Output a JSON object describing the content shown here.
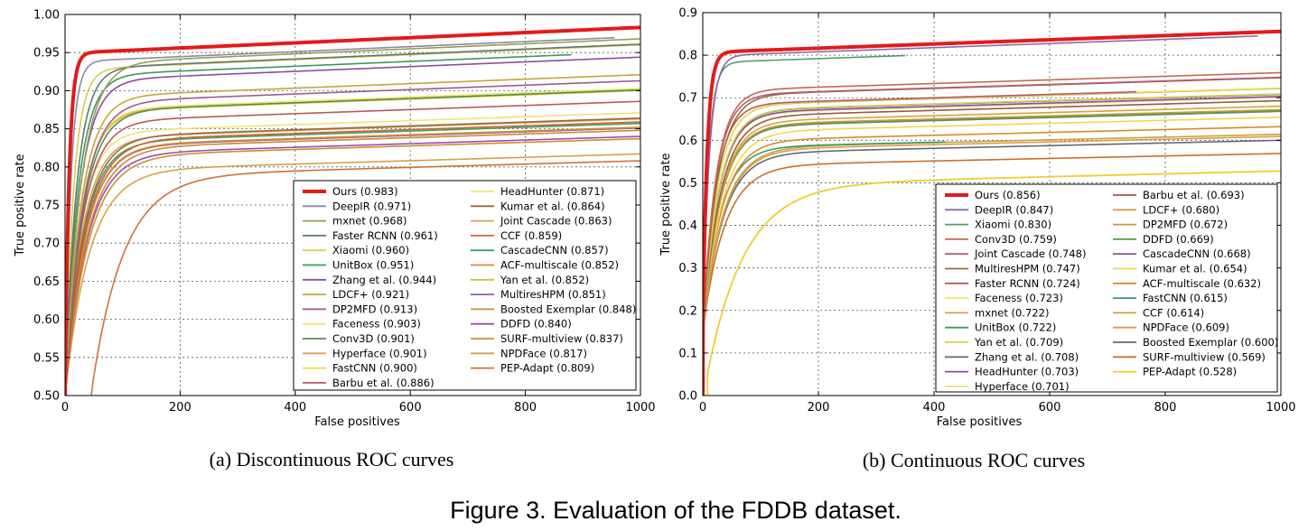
{
  "figure": {
    "caption": "Figure 3. Evaluation of the FDDB dataset."
  },
  "chart_data": [
    {
      "type": "line",
      "subtitle": "(a) Discontinuous ROC curves",
      "xlabel": "False positives",
      "ylabel": "True positive rate",
      "xlim": [
        0,
        1000
      ],
      "ylim": [
        0.5,
        1.0
      ],
      "xticks": [
        0,
        200,
        400,
        600,
        800,
        1000
      ],
      "yticks": [
        0.5,
        0.55,
        0.6,
        0.65,
        0.7,
        0.75,
        0.8,
        0.85,
        0.9,
        0.95,
        1.0
      ],
      "ytick_labels": [
        "0.50",
        "0.55",
        "0.60",
        "0.65",
        "0.70",
        "0.75",
        "0.80",
        "0.85",
        "0.90",
        "0.95",
        "1.00"
      ],
      "grid": true,
      "legend_position": "lower-right",
      "series": [
        {
          "name": "Ours (0.983)",
          "color": "#e41a1c",
          "width": 4,
          "final": 0.983,
          "x_end": 1000,
          "steep": 28,
          "start_y": 0.5
        },
        {
          "name": "DeepIR (0.971)",
          "color": "#8a8aa5",
          "width": 1.6,
          "final": 0.971,
          "x_end": 955,
          "steep": 40,
          "start_y": 0.5
        },
        {
          "name": "mxnet (0.968)",
          "color": "#9c9c55",
          "width": 1.6,
          "final": 0.968,
          "x_end": 1000,
          "steep": 110,
          "start_y": 0.5
        },
        {
          "name": "Faster RCNN (0.961)",
          "color": "#5e7a75",
          "width": 1.6,
          "final": 0.961,
          "x_end": 1000,
          "steep": 80,
          "start_y": 0.5
        },
        {
          "name": "Xiaomi (0.960)",
          "color": "#d5cf4a",
          "width": 1.6,
          "final": 0.96,
          "x_end": 1000,
          "steep": 60,
          "start_y": 0.5
        },
        {
          "name": "UnitBox (0.951)",
          "color": "#3a9a5a",
          "width": 1.6,
          "final": 0.951,
          "x_end": 880,
          "steep": 90,
          "start_y": 0.5
        },
        {
          "name": "Zhang et al. (0.944)",
          "color": "#8e4ba0",
          "width": 1.6,
          "final": 0.944,
          "x_end": 1000,
          "steep": 100,
          "start_y": 0.5
        },
        {
          "name": "LDCF+ (0.921)",
          "color": "#c9a23a",
          "width": 1.6,
          "final": 0.921,
          "x_end": 1000,
          "steep": 110,
          "start_y": 0.5
        },
        {
          "name": "DP2MFD (0.913)",
          "color": "#a05a8c",
          "width": 1.6,
          "final": 0.913,
          "x_end": 1000,
          "steep": 120,
          "start_y": 0.5
        },
        {
          "name": "Faceness (0.903)",
          "color": "#ede76a",
          "width": 1.6,
          "final": 0.903,
          "x_end": 1000,
          "steep": 110,
          "start_y": 0.5
        },
        {
          "name": "Conv3D (0.901)",
          "color": "#4f8c57",
          "width": 1.6,
          "final": 0.901,
          "x_end": 1000,
          "steep": 120,
          "start_y": 0.5
        },
        {
          "name": "Hyperface (0.901)",
          "color": "#e0a44a",
          "width": 1.6,
          "final": 0.901,
          "x_end": 1000,
          "steep": 110,
          "start_y": 0.5
        },
        {
          "name": "FastCNN (0.900)",
          "color": "#f0d845",
          "width": 1.6,
          "final": 0.9,
          "x_end": 1000,
          "steep": 110,
          "start_y": 0.5
        },
        {
          "name": "Barbu et al. (0.886)",
          "color": "#b85a5a",
          "width": 1.6,
          "final": 0.886,
          "x_end": 1000,
          "steep": 120,
          "start_y": 0.5
        },
        {
          "name": "HeadHunter (0.871)",
          "color": "#efe27a",
          "width": 1.6,
          "final": 0.871,
          "x_end": 1000,
          "steep": 110,
          "start_y": 0.5
        },
        {
          "name": "Kumar et al. (0.864)",
          "color": "#9a6a3c",
          "width": 1.6,
          "final": 0.864,
          "x_end": 1000,
          "steep": 130,
          "start_y": 0.5
        },
        {
          "name": "Joint Cascade (0.863)",
          "color": "#d6a24c",
          "width": 1.6,
          "final": 0.863,
          "x_end": 1000,
          "steep": 120,
          "start_y": 0.5
        },
        {
          "name": "CCF (0.859)",
          "color": "#d2603a",
          "width": 1.6,
          "final": 0.859,
          "x_end": 1000,
          "steep": 140,
          "start_y": 0.5
        },
        {
          "name": "CascadeCNN (0.857)",
          "color": "#3aa06a",
          "width": 1.6,
          "final": 0.857,
          "x_end": 1000,
          "steep": 130,
          "start_y": 0.5
        },
        {
          "name": "ACF-multiscale (0.852)",
          "color": "#d98a2c",
          "width": 1.6,
          "final": 0.852,
          "x_end": 1000,
          "steep": 140,
          "start_y": 0.5
        },
        {
          "name": "Yan et al. (0.852)",
          "color": "#c7c23a",
          "width": 1.6,
          "final": 0.852,
          "x_end": 1000,
          "steep": 140,
          "start_y": 0.5
        },
        {
          "name": "MultiresHPM (0.851)",
          "color": "#8c5ab0",
          "width": 1.6,
          "final": 0.851,
          "x_end": 1000,
          "steep": 140,
          "start_y": 0.5
        },
        {
          "name": "Boosted Exemplar (0.848)",
          "color": "#c98a3a",
          "width": 1.6,
          "final": 0.848,
          "x_end": 1000,
          "steep": 150,
          "start_y": 0.5
        },
        {
          "name": "DDFD (0.840)",
          "color": "#a04ab0",
          "width": 1.6,
          "final": 0.84,
          "x_end": 1000,
          "steep": 150,
          "start_y": 0.5
        },
        {
          "name": "SURF-multiview (0.837)",
          "color": "#c8902a",
          "width": 1.6,
          "final": 0.837,
          "x_end": 1000,
          "steep": 160,
          "start_y": 0.5
        },
        {
          "name": "NPDFace (0.817)",
          "color": "#d8a04a",
          "width": 1.6,
          "final": 0.817,
          "x_end": 1000,
          "steep": 170,
          "start_y": 0.5
        },
        {
          "name": "PEP-Adapt (0.809)",
          "color": "#d0703a",
          "width": 1.6,
          "final": 0.809,
          "x_end": 1000,
          "steep": 220,
          "start_y": 0.5,
          "x_start": 45
        }
      ]
    },
    {
      "type": "line",
      "subtitle": "(b) Continuous ROC curves",
      "xlabel": "False positives",
      "ylabel": "True positive rate",
      "xlim": [
        0,
        1000
      ],
      "ylim": [
        0.0,
        0.9
      ],
      "xticks": [
        0,
        200,
        400,
        600,
        800,
        1000
      ],
      "yticks": [
        0.0,
        0.1,
        0.2,
        0.3,
        0.4,
        0.5,
        0.6,
        0.7,
        0.8,
        0.9
      ],
      "ytick_labels": [
        "0.0",
        "0.1",
        "0.2",
        "0.3",
        "0.4",
        "0.5",
        "0.6",
        "0.7",
        "0.8",
        "0.9"
      ],
      "grid": true,
      "legend_position": "lower-right",
      "series": [
        {
          "name": "Ours (0.856)",
          "color": "#e41a1c",
          "width": 4,
          "final": 0.856,
          "x_end": 1000,
          "steep": 30,
          "start_y": 0.15
        },
        {
          "name": "DeepIR (0.847)",
          "color": "#8a6aa8",
          "width": 1.6,
          "final": 0.847,
          "x_end": 960,
          "steep": 45,
          "start_y": 0.15
        },
        {
          "name": "Xiaomi (0.830)",
          "color": "#5a9a6a",
          "width": 1.6,
          "final": 0.83,
          "x_end": 350,
          "steep": 40,
          "start_y": 0.15
        },
        {
          "name": "Conv3D (0.759)",
          "color": "#c46a4a",
          "width": 1.6,
          "final": 0.759,
          "x_end": 1000,
          "steep": 90,
          "start_y": 0.15
        },
        {
          "name": "Joint Cascade (0.748)",
          "color": "#b85a7a",
          "width": 1.6,
          "final": 0.748,
          "x_end": 1000,
          "steep": 90,
          "start_y": 0.15
        },
        {
          "name": "MultiresHPM (0.747)",
          "color": "#9a6a3c",
          "width": 1.6,
          "final": 0.747,
          "x_end": 1000,
          "steep": 100,
          "start_y": 0.15
        },
        {
          "name": "Faster RCNN (0.724)",
          "color": "#b85a5a",
          "width": 1.6,
          "final": 0.724,
          "x_end": 750,
          "steep": 90,
          "start_y": 0.15
        },
        {
          "name": "Faceness (0.723)",
          "color": "#ede76a",
          "width": 1.6,
          "final": 0.723,
          "x_end": 1000,
          "steep": 100,
          "start_y": 0.15
        },
        {
          "name": "mxnet (0.722)",
          "color": "#d6a24c",
          "width": 1.6,
          "final": 0.722,
          "x_end": 1000,
          "steep": 100,
          "start_y": 0.15
        },
        {
          "name": "UnitBox (0.722)",
          "color": "#3a9a5a",
          "width": 1.6,
          "final": 0.722,
          "x_end": 1000,
          "steep": 100,
          "start_y": 0.15
        },
        {
          "name": "Yan et al. (0.709)",
          "color": "#d5cf4a",
          "width": 1.6,
          "final": 0.709,
          "x_end": 1000,
          "steep": 110,
          "start_y": 0.15
        },
        {
          "name": "Zhang et al. (0.708)",
          "color": "#6a6a8a",
          "width": 1.6,
          "final": 0.708,
          "x_end": 1000,
          "steep": 110,
          "start_y": 0.15
        },
        {
          "name": "HeadHunter (0.703)",
          "color": "#8e4ba0",
          "width": 1.6,
          "final": 0.703,
          "x_end": 1000,
          "steep": 110,
          "start_y": 0.15
        },
        {
          "name": "Hyperface (0.701)",
          "color": "#f0e070",
          "width": 1.6,
          "final": 0.701,
          "x_end": 1000,
          "steep": 110,
          "start_y": 0.15
        },
        {
          "name": "Barbu et al. (0.693)",
          "color": "#9a5a3c",
          "width": 1.6,
          "final": 0.693,
          "x_end": 1000,
          "steep": 120,
          "start_y": 0.15
        },
        {
          "name": "LDCF+ (0.680)",
          "color": "#d8a03a",
          "width": 1.6,
          "final": 0.68,
          "x_end": 1000,
          "steep": 120,
          "start_y": 0.15
        },
        {
          "name": "DP2MFD (0.672)",
          "color": "#c89a3a",
          "width": 1.6,
          "final": 0.672,
          "x_end": 1000,
          "steep": 120,
          "start_y": 0.15
        },
        {
          "name": "DDFD (0.669)",
          "color": "#4aa04a",
          "width": 1.6,
          "final": 0.669,
          "x_end": 1000,
          "steep": 120,
          "start_y": 0.15
        },
        {
          "name": "CascadeCNN (0.668)",
          "color": "#8a5a8a",
          "width": 1.6,
          "final": 0.668,
          "x_end": 1000,
          "steep": 120,
          "start_y": 0.15
        },
        {
          "name": "Kumar et al. (0.654)",
          "color": "#f0d850",
          "width": 1.6,
          "final": 0.654,
          "x_end": 1000,
          "steep": 130,
          "start_y": 0.15
        },
        {
          "name": "ACF-multiscale (0.632)",
          "color": "#d98a2c",
          "width": 1.6,
          "final": 0.632,
          "x_end": 1000,
          "steep": 130,
          "start_y": 0.15
        },
        {
          "name": "FastCNN (0.615)",
          "color": "#3a9a6a",
          "width": 1.6,
          "final": 0.615,
          "x_end": 420,
          "steep": 120,
          "start_y": 0.15
        },
        {
          "name": "CCF (0.614)",
          "color": "#c9a23a",
          "width": 1.6,
          "final": 0.614,
          "x_end": 1000,
          "steep": 140,
          "start_y": 0.15
        },
        {
          "name": "NPDFace (0.609)",
          "color": "#e09a4a",
          "width": 1.6,
          "final": 0.609,
          "x_end": 1000,
          "steep": 140,
          "start_y": 0.15
        },
        {
          "name": "Boosted Exemplar (0.600)",
          "color": "#606a7a",
          "width": 1.6,
          "final": 0.6,
          "x_end": 1000,
          "steep": 140,
          "start_y": 0.15
        },
        {
          "name": "SURF-multiview (0.569)",
          "color": "#c8702a",
          "width": 1.6,
          "final": 0.569,
          "x_end": 1000,
          "steep": 150,
          "start_y": 0.15
        },
        {
          "name": "PEP-Adapt (0.528)",
          "color": "#f0cc30",
          "width": 1.8,
          "final": 0.528,
          "x_end": 1000,
          "steep": 260,
          "start_y": 0.05,
          "x_start": 8
        }
      ]
    }
  ]
}
